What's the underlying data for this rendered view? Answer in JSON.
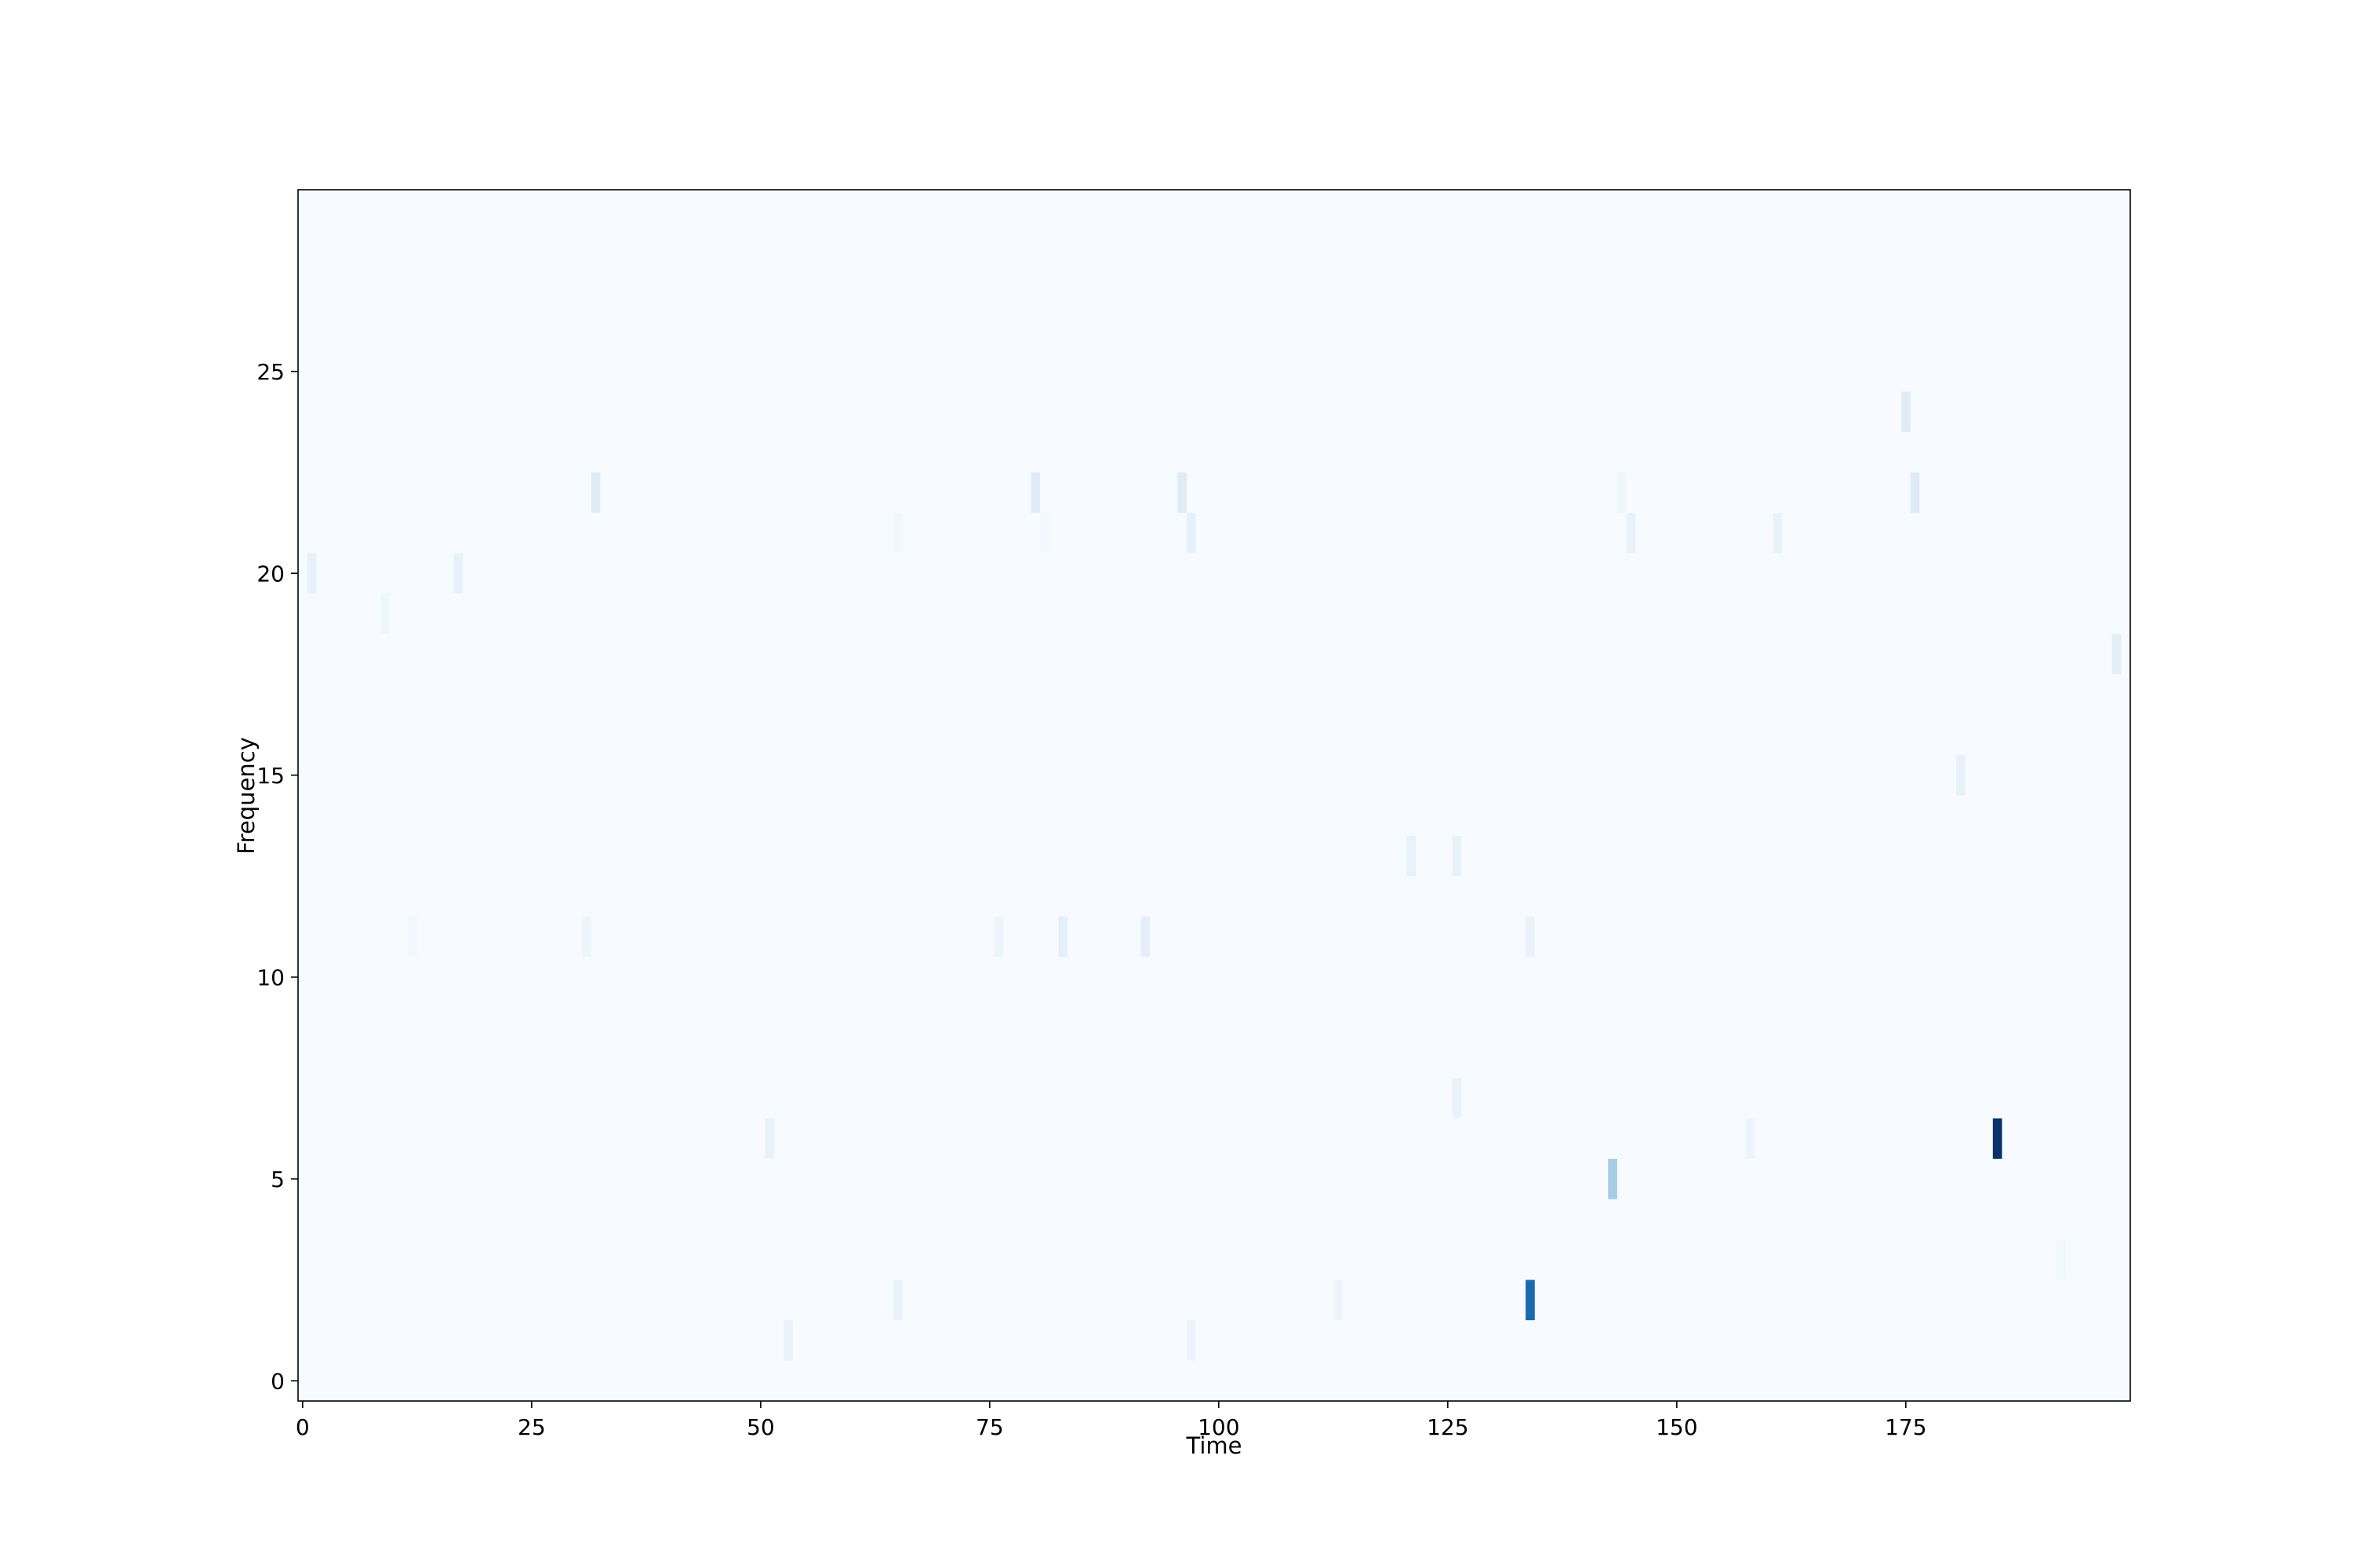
{
  "chart_data": {
    "type": "heatmap",
    "title": "",
    "xlabel": "Time",
    "ylabel": "Frequency",
    "xlim": [
      -0.5,
      199.5
    ],
    "ylim": [
      -0.5,
      29.5
    ],
    "x_ticks": [
      0,
      25,
      50,
      75,
      100,
      125,
      150,
      175
    ],
    "y_ticks": [
      0,
      5,
      10,
      15,
      20,
      25
    ],
    "x_tick_labels": [
      "0",
      "25",
      "50",
      "75",
      "100",
      "125",
      "150",
      "175"
    ],
    "y_tick_labels": [
      "0",
      "5",
      "10",
      "15",
      "20",
      "25"
    ],
    "colormap": "Blues",
    "colormap_stops": [
      "#f7fbff",
      "#deebf7",
      "#c6dbef",
      "#9ecae1",
      "#6baed6",
      "#4292c6",
      "#2171b5",
      "#08519c",
      "#08306b"
    ],
    "value_range": [
      0,
      1
    ],
    "background_value": 0,
    "grid": false,
    "cells": [
      {
        "time": 1,
        "frequency": 20,
        "value": 0.08
      },
      {
        "time": 9,
        "frequency": 19,
        "value": 0.04
      },
      {
        "time": 12,
        "frequency": 11,
        "value": 0.03
      },
      {
        "time": 17,
        "frequency": 20,
        "value": 0.08
      },
      {
        "time": 31,
        "frequency": 11,
        "value": 0.05
      },
      {
        "time": 32,
        "frequency": 22,
        "value": 0.12
      },
      {
        "time": 51,
        "frequency": 6,
        "value": 0.07
      },
      {
        "time": 53,
        "frequency": 1,
        "value": 0.07
      },
      {
        "time": 65,
        "frequency": 21,
        "value": 0.03
      },
      {
        "time": 65,
        "frequency": 2,
        "value": 0.07
      },
      {
        "time": 76,
        "frequency": 11,
        "value": 0.05
      },
      {
        "time": 80,
        "frequency": 22,
        "value": 0.12
      },
      {
        "time": 81,
        "frequency": 21,
        "value": 0.03
      },
      {
        "time": 83,
        "frequency": 11,
        "value": 0.1
      },
      {
        "time": 92,
        "frequency": 11,
        "value": 0.1
      },
      {
        "time": 96,
        "frequency": 22,
        "value": 0.12
      },
      {
        "time": 97,
        "frequency": 21,
        "value": 0.08
      },
      {
        "time": 97,
        "frequency": 1,
        "value": 0.05
      },
      {
        "time": 113,
        "frequency": 2,
        "value": 0.05
      },
      {
        "time": 121,
        "frequency": 13,
        "value": 0.08
      },
      {
        "time": 126,
        "frequency": 13,
        "value": 0.08
      },
      {
        "time": 126,
        "frequency": 7,
        "value": 0.07
      },
      {
        "time": 134,
        "frequency": 11,
        "value": 0.07
      },
      {
        "time": 134,
        "frequency": 2,
        "value": 0.78
      },
      {
        "time": 143,
        "frequency": 5,
        "value": 0.35
      },
      {
        "time": 144,
        "frequency": 22,
        "value": 0.04
      },
      {
        "time": 145,
        "frequency": 21,
        "value": 0.07
      },
      {
        "time": 158,
        "frequency": 6,
        "value": 0.05
      },
      {
        "time": 161,
        "frequency": 21,
        "value": 0.07
      },
      {
        "time": 175,
        "frequency": 24,
        "value": 0.12
      },
      {
        "time": 176,
        "frequency": 22,
        "value": 0.12
      },
      {
        "time": 181,
        "frequency": 15,
        "value": 0.08
      },
      {
        "time": 185,
        "frequency": 6,
        "value": 1.0
      },
      {
        "time": 192,
        "frequency": 3,
        "value": 0.04
      },
      {
        "time": 198,
        "frequency": 18,
        "value": 0.1
      }
    ]
  }
}
